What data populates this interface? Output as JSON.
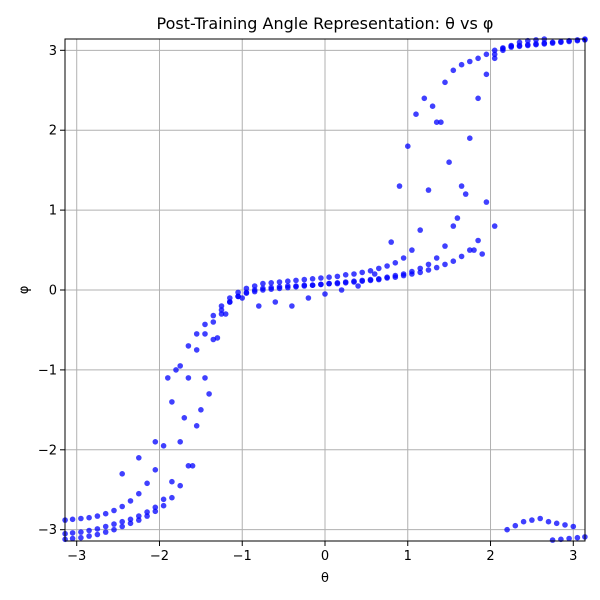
{
  "chart_data": {
    "type": "scatter",
    "title": "Post-Training Angle Representation: θ vs φ",
    "xlabel": "θ",
    "ylabel": "φ",
    "xlim": [
      -3.1416,
      3.1416
    ],
    "ylim": [
      -3.1416,
      3.1416
    ],
    "xticks": [
      -3,
      -2,
      -1,
      0,
      1,
      2,
      3
    ],
    "yticks": [
      -3,
      -2,
      -1,
      0,
      1,
      2,
      3
    ],
    "xtick_labels": [
      "−3",
      "−2",
      "−1",
      "0",
      "1",
      "2",
      "3"
    ],
    "ytick_labels": [
      "−3",
      "−2",
      "−1",
      "0",
      "1",
      "2",
      "3"
    ],
    "grid": true,
    "marker_color": "#0000ff",
    "marker_alpha": 0.75,
    "series": [
      {
        "x": [
          -3.14,
          -3.05,
          -2.95,
          -2.85,
          -2.75,
          -2.65,
          -2.55,
          -2.45,
          -2.35,
          -2.25,
          -2.15,
          -2.05,
          -1.95,
          -1.85,
          -1.75,
          -1.65,
          -1.55,
          -1.45,
          -1.35,
          -1.25,
          -1.15,
          -1.05,
          -0.95,
          -0.85,
          -0.75,
          -0.65,
          -0.55,
          -0.45,
          -0.35,
          -0.25,
          -0.15,
          -0.05,
          0.05,
          0.15,
          0.25,
          0.35,
          0.45,
          0.55,
          0.65,
          0.75,
          0.85,
          0.95,
          1.05,
          1.15,
          1.25,
          1.35,
          1.45,
          1.55,
          1.65,
          1.75,
          1.85,
          1.95,
          2.05,
          2.15,
          2.25,
          2.35,
          2.45,
          2.55,
          2.65,
          2.75,
          2.85,
          2.95,
          3.05,
          3.14
        ],
        "y": [
          -3.05,
          -3.04,
          -3.03,
          -3.01,
          -2.99,
          -2.96,
          -2.93,
          -2.9,
          -2.87,
          -2.83,
          -2.78,
          -2.72,
          -2.62,
          -2.4,
          -1.9,
          -1.1,
          -0.75,
          -0.55,
          -0.4,
          -0.25,
          -0.15,
          -0.08,
          -0.03,
          0.0,
          0.02,
          0.03,
          0.04,
          0.05,
          0.05,
          0.06,
          0.06,
          0.07,
          0.08,
          0.08,
          0.09,
          0.1,
          0.11,
          0.12,
          0.13,
          0.15,
          0.16,
          0.18,
          0.2,
          0.22,
          0.25,
          0.28,
          0.32,
          0.36,
          0.42,
          0.5,
          0.62,
          1.1,
          2.95,
          3.02,
          3.04,
          3.05,
          3.06,
          3.07,
          3.08,
          3.09,
          3.1,
          3.11,
          3.12,
          3.13
        ]
      },
      {
        "x": [
          -3.14,
          -3.05,
          -2.95,
          -2.85,
          -2.75,
          -2.65,
          -2.55,
          -2.45,
          -2.35,
          -2.25,
          -2.15,
          -2.05,
          -1.95,
          -1.85,
          -1.75,
          -1.65,
          -1.55,
          -1.45,
          -1.35,
          -1.25,
          -1.15,
          -1.05,
          -0.95,
          -0.85,
          -0.75,
          -0.65,
          -0.55,
          -0.45,
          -0.35,
          -0.25,
          -0.15,
          -0.05,
          0.05,
          0.15,
          0.25,
          0.35,
          0.45,
          0.55,
          0.65,
          0.75,
          0.85,
          0.95,
          1.05,
          1.15,
          1.25,
          1.35,
          1.45,
          1.55,
          1.65,
          1.75,
          1.85,
          1.95,
          2.05,
          2.15,
          2.25,
          2.35,
          2.45,
          2.55,
          2.65,
          2.75,
          2.85,
          2.95,
          3.05,
          3.14
        ],
        "y": [
          -2.88,
          -2.87,
          -2.86,
          -2.85,
          -2.83,
          -2.8,
          -2.76,
          -2.71,
          -2.64,
          -2.55,
          -2.42,
          -2.25,
          -1.95,
          -1.4,
          -0.95,
          -0.7,
          -0.55,
          -0.43,
          -0.32,
          -0.2,
          -0.1,
          -0.03,
          0.02,
          0.05,
          0.08,
          0.09,
          0.1,
          0.11,
          0.12,
          0.13,
          0.14,
          0.15,
          0.16,
          0.17,
          0.19,
          0.2,
          0.22,
          0.24,
          0.27,
          0.3,
          0.34,
          0.4,
          0.5,
          0.75,
          1.25,
          2.1,
          2.6,
          2.75,
          2.82,
          2.86,
          2.9,
          2.95,
          3.0,
          3.03,
          3.05,
          3.06,
          3.07,
          3.08,
          3.09,
          3.1,
          3.11,
          3.12,
          3.13,
          3.14
        ]
      },
      {
        "x": [
          -3.14,
          -3.05,
          -2.95,
          -2.85,
          -2.75,
          -2.65,
          -2.55,
          -2.45,
          -2.35,
          -2.25,
          -2.15,
          -2.05,
          -1.95,
          -1.85,
          -1.75,
          -1.65,
          -1.55,
          -1.45,
          -1.35,
          -1.25,
          -1.15,
          -1.05,
          -0.95,
          -0.85,
          -0.75,
          -0.65,
          -0.55,
          -0.45,
          -0.35,
          -0.25,
          -0.15,
          -0.05,
          0.05,
          0.15,
          0.25,
          0.35,
          0.45,
          0.55,
          0.65,
          0.75,
          0.85,
          0.95,
          1.05,
          1.15,
          1.25,
          1.35,
          1.45,
          1.55,
          1.65,
          1.75,
          1.85,
          1.95,
          2.05,
          2.15,
          2.25,
          2.35,
          2.45,
          2.55,
          2.65,
          2.75,
          2.85,
          2.95,
          3.05,
          3.14
        ],
        "y": [
          -3.12,
          -3.11,
          -3.1,
          -3.08,
          -3.06,
          -3.03,
          -3.0,
          -2.96,
          -2.92,
          -2.88,
          -2.83,
          -2.77,
          -2.7,
          -2.6,
          -2.45,
          -2.2,
          -1.7,
          -1.1,
          -0.62,
          -0.3,
          -0.15,
          -0.08,
          -0.04,
          -0.02,
          0.0,
          0.01,
          0.02,
          0.03,
          0.04,
          0.05,
          0.06,
          0.07,
          0.08,
          0.09,
          0.1,
          0.11,
          0.12,
          0.13,
          0.14,
          0.16,
          0.18,
          0.2,
          0.23,
          0.27,
          0.32,
          0.4,
          0.55,
          0.8,
          1.3,
          1.9,
          2.4,
          2.7,
          2.9,
          3.0,
          3.06,
          3.1,
          3.12,
          3.13,
          3.14,
          -3.13,
          -3.12,
          -3.11,
          -3.1,
          -3.09
        ]
      },
      {
        "x": [
          -2.45,
          -2.25,
          -2.05,
          -1.9,
          -1.8,
          -1.7,
          -1.6,
          -1.5,
          -1.4,
          -1.3,
          -1.2,
          -1.0,
          -0.8,
          -0.6,
          -0.4,
          -0.2,
          0.0,
          0.2,
          0.4,
          0.6,
          0.8,
          0.9,
          1.0,
          1.1,
          1.2,
          1.3,
          1.4,
          1.5,
          1.6,
          1.7,
          1.8,
          1.9,
          2.05,
          2.2,
          2.3,
          2.4,
          2.5,
          2.6,
          2.7,
          2.8,
          2.9,
          3.0
        ],
        "y": [
          -2.3,
          -2.1,
          -1.9,
          -1.1,
          -1.0,
          -1.6,
          -2.2,
          -1.5,
          -1.3,
          -0.6,
          -0.3,
          -0.1,
          -0.2,
          -0.15,
          -0.2,
          -0.1,
          -0.05,
          0.0,
          0.05,
          0.2,
          0.6,
          1.3,
          1.8,
          2.2,
          2.4,
          2.3,
          2.1,
          1.6,
          0.9,
          1.2,
          0.5,
          0.45,
          0.8,
          -3.0,
          -2.95,
          -2.9,
          -2.88,
          -2.86,
          -2.9,
          -2.92,
          -2.94,
          -2.96
        ]
      }
    ]
  }
}
